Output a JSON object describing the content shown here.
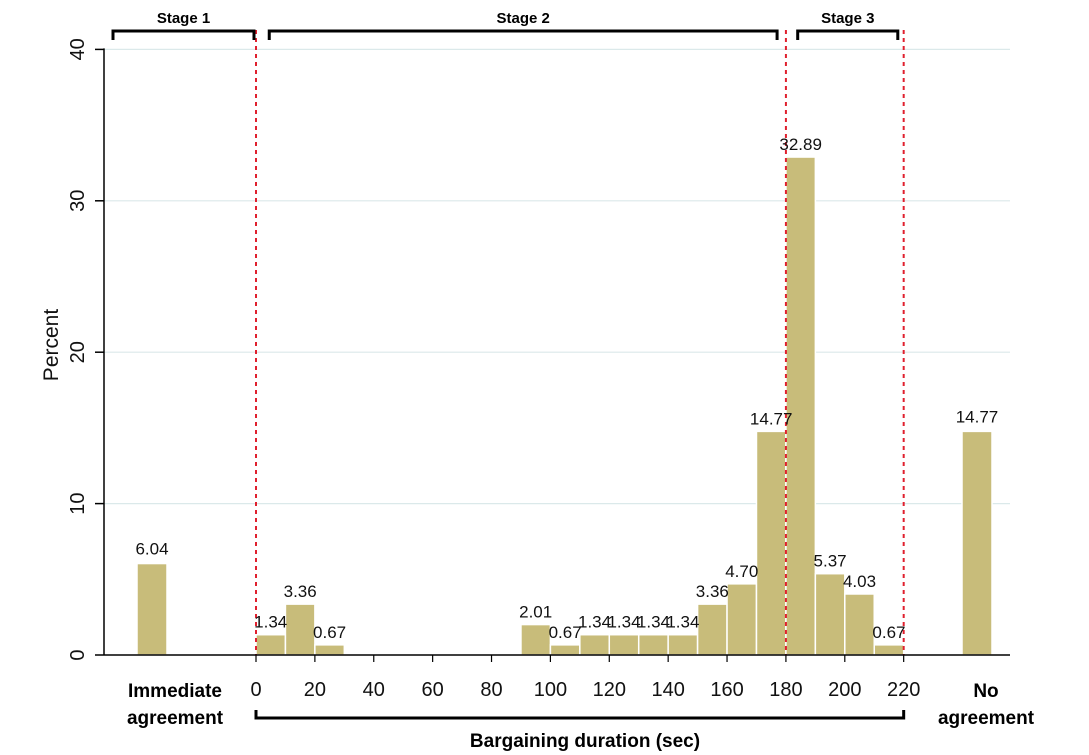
{
  "chart_data": {
    "type": "bar",
    "ylabel": "Percent",
    "xlabel": "Bargaining duration (sec)",
    "ylim": [
      0,
      40
    ],
    "yticks": [
      0,
      10,
      20,
      30,
      40
    ],
    "xlim": [
      -50,
      250
    ],
    "xticks": [
      0,
      20,
      40,
      60,
      80,
      100,
      120,
      140,
      160,
      180,
      200,
      220
    ],
    "grid": "horizontal",
    "bin_width_sec": 10,
    "bins": [
      {
        "start": 0,
        "value": 1.34,
        "label": "1.34"
      },
      {
        "start": 10,
        "value": 3.36,
        "label": "3.36"
      },
      {
        "start": 20,
        "value": 0.67,
        "label": "0.67"
      },
      {
        "start": 90,
        "value": 2.01,
        "label": "2.01"
      },
      {
        "start": 100,
        "value": 0.67,
        "label": "0.67"
      },
      {
        "start": 110,
        "value": 1.34,
        "label": "1.34"
      },
      {
        "start": 120,
        "value": 1.34,
        "label": "1.34"
      },
      {
        "start": 130,
        "value": 1.34,
        "label": "1.34"
      },
      {
        "start": 140,
        "value": 1.34,
        "label": "1.34"
      },
      {
        "start": 150,
        "value": 3.36,
        "label": "3.36"
      },
      {
        "start": 160,
        "value": 4.7,
        "label": "4.70"
      },
      {
        "start": 170,
        "value": 14.77,
        "label": "14.77"
      },
      {
        "start": 180,
        "value": 32.89,
        "label": "32.89"
      },
      {
        "start": 190,
        "value": 5.37,
        "label": "5.37"
      },
      {
        "start": 200,
        "value": 4.03,
        "label": "4.03"
      },
      {
        "start": 210,
        "value": 0.67,
        "label": "0.67"
      }
    ],
    "special_bars": [
      {
        "category": "Immediate agreement",
        "value": 6.04,
        "label": "6.04",
        "line1": "Immediate",
        "line2": "agreement"
      },
      {
        "category": "No agreement",
        "value": 14.77,
        "label": "14.77",
        "line1": "No",
        "line2": "agreement"
      }
    ],
    "stages": [
      {
        "label": "Stage 1",
        "from": -50,
        "to": 0
      },
      {
        "label": "Stage 2",
        "from": 0,
        "to": 180
      },
      {
        "label": "Stage 3",
        "from": 180,
        "to": 220
      }
    ],
    "stage_boundaries": [
      0,
      180,
      220
    ],
    "colors": {
      "bar": "#c8bc7a",
      "boundary": "#e0202e",
      "grid": "#dbe9ea"
    }
  }
}
